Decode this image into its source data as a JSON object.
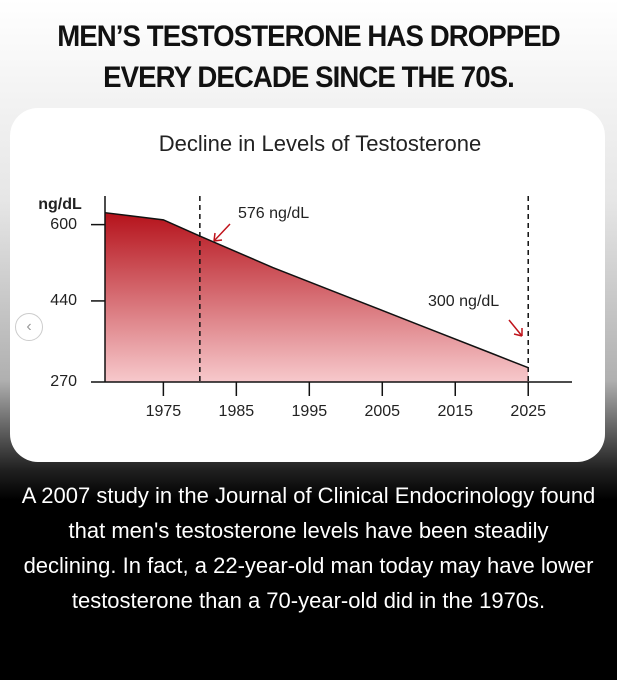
{
  "header": {
    "title": "MEN’S TESTOSTERONE HAS DROPPED EVERY DECADE SINCE THE 70S."
  },
  "chart_data": {
    "type": "area",
    "title": "Decline in Levels of Testosterone",
    "y_label": "ng/dL",
    "x": [
      1967,
      1975,
      1980,
      1990,
      2000,
      2010,
      2020,
      2025
    ],
    "values": [
      625,
      610,
      576,
      510,
      450,
      390,
      330,
      300
    ],
    "xlim": [
      1967,
      2031
    ],
    "xticks": [
      1975,
      1985,
      1995,
      2005,
      2015,
      2025
    ],
    "ylim": [
      270,
      660
    ],
    "yticks": [
      600,
      440,
      270
    ],
    "color_top": "#b5121b",
    "color_bottom": "#f7c9cc",
    "reference_lines": [
      1980,
      2025
    ],
    "annotations": [
      "576 ng/dL",
      "300 ng/dL"
    ]
  },
  "body": {
    "text": "A 2007 study in the Journal of Clinical Endocrinology found that men's testosterone levels have been steadily declining. In fact, a 22-year-old man today may have lower testosterone than a 70-year-old did in the 1970s."
  }
}
